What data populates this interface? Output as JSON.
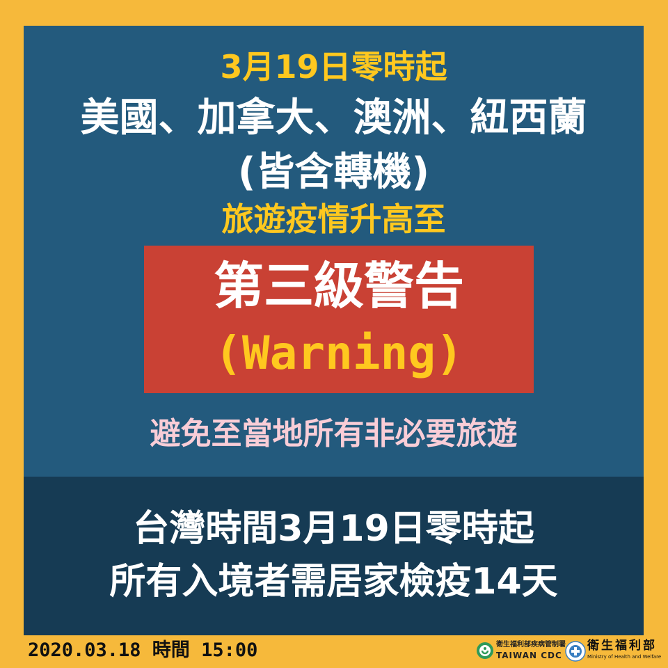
{
  "headline": {
    "date_line": "3月19日零時起",
    "countries_line": "美國、加拿大、澳洲、紐西蘭",
    "transit_line": "(皆含轉機)",
    "raise_line": "旅遊疫情升高至"
  },
  "warning": {
    "level": "第三級警告",
    "english": "(Warning)"
  },
  "advice": "避免至當地所有非必要旅遊",
  "notice": {
    "line1": "台灣時間3月19日零時起",
    "line2": "所有入境者需居家檢疫14天"
  },
  "footer": {
    "datetime": "2020.03.18 時間 15:00",
    "cdc_name_zh": "衛生福利部疾病管制署",
    "cdc_name_en": "TAIWAN CDC",
    "moh_name_zh": "衛生福利部",
    "moh_name_en": "Ministry of Health and Welfare"
  },
  "colors": {
    "background": "#F6B93B",
    "panel_top": "#235A7D",
    "panel_bottom": "#163B54",
    "warning_box": "#C94134",
    "yellow_text": "#FFC81F",
    "pink_text": "#F9CDD7"
  }
}
